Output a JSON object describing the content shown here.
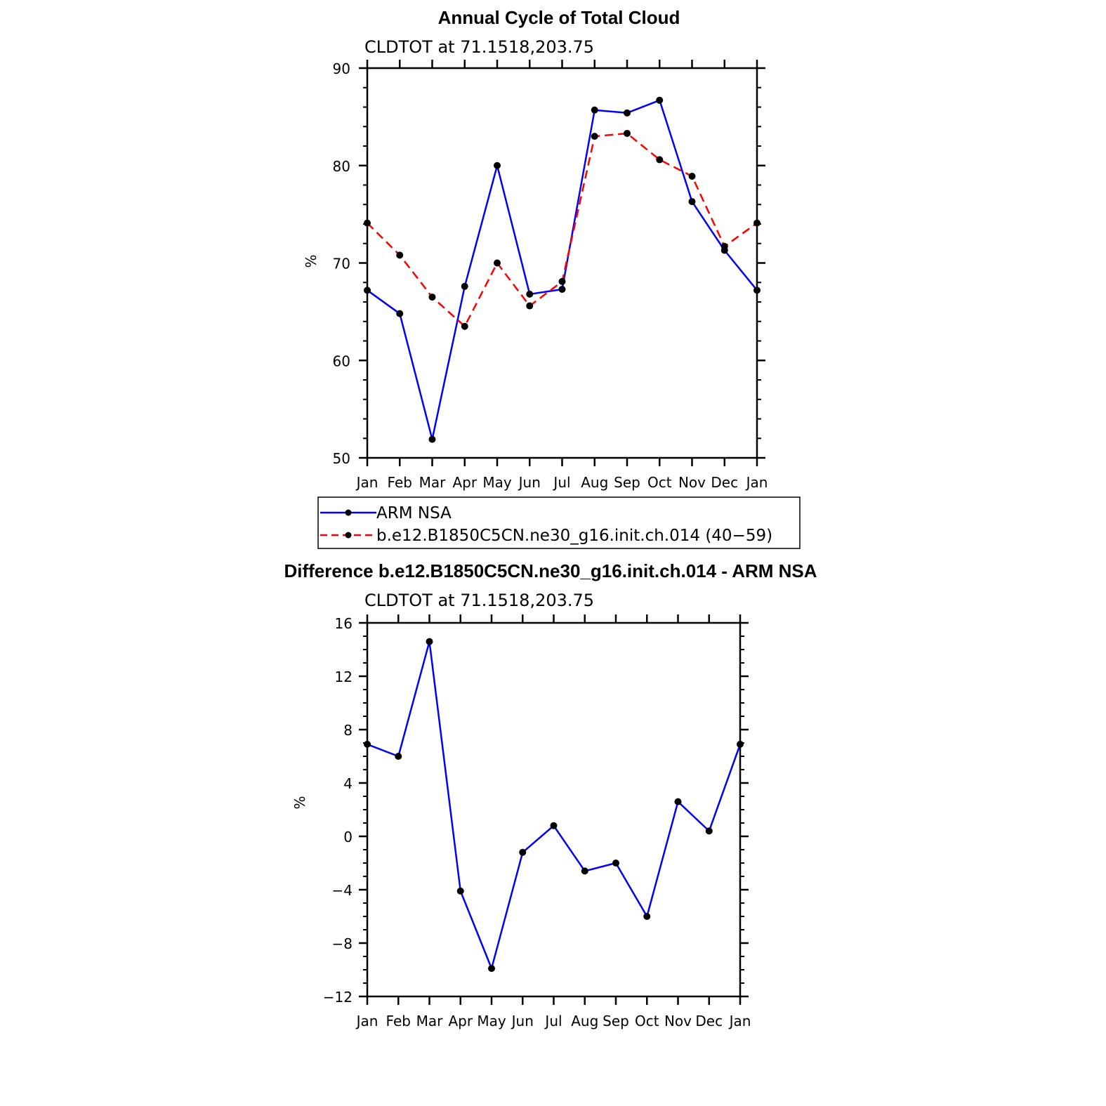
{
  "chart_data": [
    {
      "type": "line",
      "title": "Annual Cycle of Total Cloud",
      "subtitle": "CLDTOT at 71.1518,203.75",
      "ylabel": "%",
      "categories": [
        "Jan",
        "Feb",
        "Mar",
        "Apr",
        "May",
        "Jun",
        "Jul",
        "Aug",
        "Sep",
        "Oct",
        "Nov",
        "Dec",
        "Jan"
      ],
      "ylim": [
        50,
        90
      ],
      "yticks": [
        "50",
        "60",
        "70",
        "80",
        "90"
      ],
      "series": [
        {
          "name": "ARM NSA",
          "color": "#0000ff",
          "dash": "solid",
          "values": [
            67.2,
            64.8,
            51.9,
            67.6,
            80.0,
            66.8,
            67.3,
            85.7,
            85.4,
            86.7,
            76.3,
            71.3,
            67.2
          ]
        },
        {
          "name": "b.e12.B1850C5CN.ne30_g16.init.ch.014 (40−59)",
          "color": "#ff0000",
          "dash": "dashed",
          "values": [
            74.1,
            70.8,
            66.5,
            63.5,
            70.0,
            65.6,
            68.1,
            83.0,
            83.3,
            80.6,
            78.9,
            71.7,
            74.1
          ]
        }
      ],
      "legend": "below"
    },
    {
      "type": "line",
      "title": "Difference b.e12.B1850C5CN.ne30_g16.init.ch.014 - ARM NSA",
      "subtitle": "CLDTOT at 71.1518,203.75",
      "ylabel": "%",
      "categories": [
        "Jan",
        "Feb",
        "Mar",
        "Apr",
        "May",
        "Jun",
        "Jul",
        "Aug",
        "Sep",
        "Oct",
        "Nov",
        "Dec",
        "Jan"
      ],
      "ylim": [
        -12,
        16
      ],
      "yticks": [
        "−12",
        "−8",
        "−4",
        "0",
        "4",
        "8",
        "12",
        "16"
      ],
      "series": [
        {
          "color": "#0000ff",
          "dash": "solid",
          "values": [
            6.9,
            6.0,
            14.6,
            -4.1,
            -9.9,
            -1.2,
            0.8,
            -2.6,
            -2.0,
            -6.0,
            2.6,
            0.4,
            6.9
          ]
        }
      ]
    }
  ]
}
